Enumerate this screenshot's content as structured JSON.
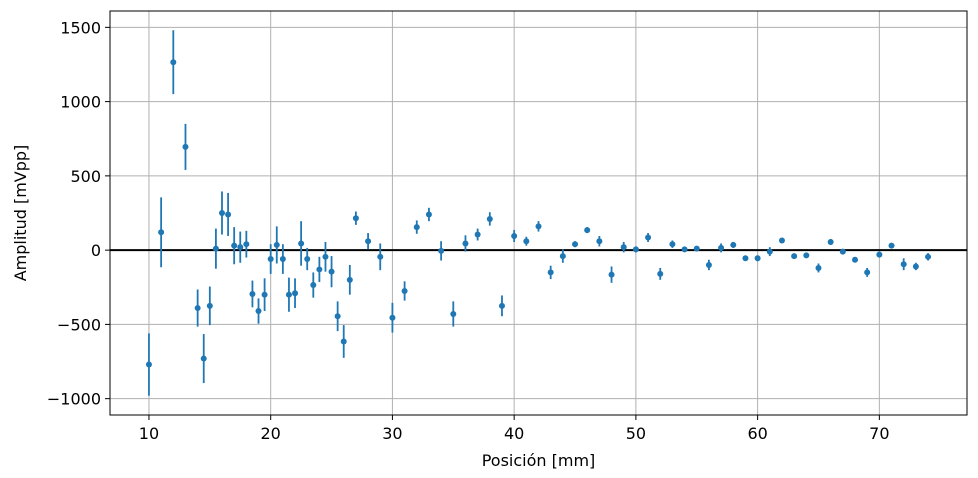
{
  "chart_data": {
    "type": "scatter",
    "title": "",
    "xlabel": "Posición [mm]",
    "ylabel": "Amplitud [mVpp]",
    "xlim": [
      6.8,
      77.2
    ],
    "ylim": [
      -1110,
      1610
    ],
    "xticks": [
      10,
      20,
      30,
      40,
      50,
      60,
      70
    ],
    "yticks": [
      -1000,
      -500,
      0,
      500,
      1000,
      1500
    ],
    "grid": true,
    "reference_line_y": 0,
    "marker_color": "#1f77b4",
    "reference_line_color": "#000000",
    "series": [
      {
        "points": [
          {
            "x": 10,
            "y": -770,
            "err": 210
          },
          {
            "x": 11,
            "y": 120,
            "err": 235
          },
          {
            "x": 12,
            "y": 1265,
            "err": 215
          },
          {
            "x": 13,
            "y": 695,
            "err": 155
          },
          {
            "x": 14,
            "y": -390,
            "err": 125
          },
          {
            "x": 14.5,
            "y": -730,
            "err": 165
          },
          {
            "x": 15,
            "y": -375,
            "err": 130
          },
          {
            "x": 15.5,
            "y": 10,
            "err": 135
          },
          {
            "x": 16,
            "y": 250,
            "err": 145
          },
          {
            "x": 16.5,
            "y": 240,
            "err": 145
          },
          {
            "x": 17,
            "y": 30,
            "err": 125
          },
          {
            "x": 17.5,
            "y": 20,
            "err": 105
          },
          {
            "x": 18,
            "y": 40,
            "err": 90
          },
          {
            "x": 18.5,
            "y": -295,
            "err": 90
          },
          {
            "x": 19,
            "y": -410,
            "err": 85
          },
          {
            "x": 19.5,
            "y": -300,
            "err": 110
          },
          {
            "x": 20,
            "y": -60,
            "err": 100
          },
          {
            "x": 20.5,
            "y": 35,
            "err": 125
          },
          {
            "x": 21,
            "y": -60,
            "err": 100
          },
          {
            "x": 21.5,
            "y": -300,
            "err": 115
          },
          {
            "x": 22,
            "y": -290,
            "err": 100
          },
          {
            "x": 22.5,
            "y": 45,
            "err": 150
          },
          {
            "x": 23,
            "y": -60,
            "err": 75
          },
          {
            "x": 23.5,
            "y": -235,
            "err": 85
          },
          {
            "x": 24,
            "y": -130,
            "err": 85
          },
          {
            "x": 24.5,
            "y": -45,
            "err": 100
          },
          {
            "x": 25,
            "y": -145,
            "err": 105
          },
          {
            "x": 25.5,
            "y": -445,
            "err": 100
          },
          {
            "x": 26,
            "y": -615,
            "err": 110
          },
          {
            "x": 26.5,
            "y": -200,
            "err": 100
          },
          {
            "x": 27,
            "y": 215,
            "err": 45
          },
          {
            "x": 28,
            "y": 60,
            "err": 55
          },
          {
            "x": 29,
            "y": -45,
            "err": 90
          },
          {
            "x": 30,
            "y": -455,
            "err": 100
          },
          {
            "x": 31,
            "y": -275,
            "err": 65
          },
          {
            "x": 32,
            "y": 155,
            "err": 45
          },
          {
            "x": 33,
            "y": 240,
            "err": 45
          },
          {
            "x": 34,
            "y": -5,
            "err": 65
          },
          {
            "x": 35,
            "y": -430,
            "err": 85
          },
          {
            "x": 36,
            "y": 45,
            "err": 55
          },
          {
            "x": 37,
            "y": 105,
            "err": 40
          },
          {
            "x": 38,
            "y": 210,
            "err": 45
          },
          {
            "x": 39,
            "y": -375,
            "err": 70
          },
          {
            "x": 40,
            "y": 95,
            "err": 40
          },
          {
            "x": 41,
            "y": 60,
            "err": 30
          },
          {
            "x": 42,
            "y": 160,
            "err": 35
          },
          {
            "x": 43,
            "y": -150,
            "err": 45
          },
          {
            "x": 44,
            "y": -40,
            "err": 45
          },
          {
            "x": 45,
            "y": 40,
            "err": 20
          },
          {
            "x": 46,
            "y": 135,
            "err": 20
          },
          {
            "x": 47,
            "y": 60,
            "err": 35
          },
          {
            "x": 48,
            "y": -165,
            "err": 55
          },
          {
            "x": 49,
            "y": 20,
            "err": 35
          },
          {
            "x": 50,
            "y": 5,
            "err": 20
          },
          {
            "x": 51,
            "y": 85,
            "err": 30
          },
          {
            "x": 52,
            "y": -160,
            "err": 40
          },
          {
            "x": 53,
            "y": 40,
            "err": 25
          },
          {
            "x": 54,
            "y": 5,
            "err": 15
          },
          {
            "x": 55,
            "y": 10,
            "err": 15
          },
          {
            "x": 56,
            "y": -100,
            "err": 35
          },
          {
            "x": 57,
            "y": 15,
            "err": 30
          },
          {
            "x": 58,
            "y": 35,
            "err": 20
          },
          {
            "x": 59,
            "y": -55,
            "err": 15
          },
          {
            "x": 60,
            "y": -55,
            "err": 20
          },
          {
            "x": 61,
            "y": -10,
            "err": 30
          },
          {
            "x": 62,
            "y": 65,
            "err": 15
          },
          {
            "x": 63,
            "y": -40,
            "err": 15
          },
          {
            "x": 64,
            "y": -35,
            "err": 15
          },
          {
            "x": 65,
            "y": -120,
            "err": 30
          },
          {
            "x": 66,
            "y": 55,
            "err": 20
          },
          {
            "x": 67,
            "y": -10,
            "err": 15
          },
          {
            "x": 68,
            "y": -65,
            "err": 15
          },
          {
            "x": 69,
            "y": -150,
            "err": 30
          },
          {
            "x": 70,
            "y": -30,
            "err": 20
          },
          {
            "x": 71,
            "y": 30,
            "err": 15
          },
          {
            "x": 72,
            "y": -95,
            "err": 40
          },
          {
            "x": 73,
            "y": -110,
            "err": 25
          },
          {
            "x": 74,
            "y": -45,
            "err": 25
          }
        ]
      }
    ]
  }
}
